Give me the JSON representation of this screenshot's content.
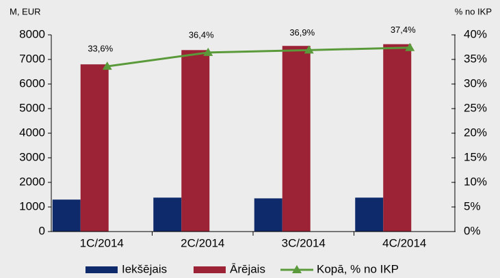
{
  "chart_data": {
    "type": "bar",
    "y_label": "M, EUR",
    "y2_label": "% no IKP",
    "categories": [
      "1C/2014",
      "2C/2014",
      "3C/2014",
      "4C/2014"
    ],
    "series": [
      {
        "name": "Iekšējais",
        "color": "#0f2a6b",
        "values": [
          1300,
          1380,
          1350,
          1380
        ]
      },
      {
        "name": "Ārējais",
        "color": "#9b2335",
        "values": [
          6800,
          7380,
          7550,
          7620
        ]
      },
      {
        "name": "Kopā, % no IKP",
        "color": "#5a9a3a",
        "type": "line",
        "axis": "y2",
        "values": [
          33.6,
          36.4,
          36.9,
          37.4
        ],
        "value_labels": [
          "33,6%",
          "36,4%",
          "36,9%",
          "37,4%"
        ]
      }
    ],
    "ylim": [
      0,
      8000
    ],
    "yticks": [
      0,
      1000,
      2000,
      3000,
      4000,
      5000,
      6000,
      7000,
      8000
    ],
    "y2lim": [
      0,
      40
    ],
    "y2ticks": [
      {
        "value": 0,
        "label": "0%"
      },
      {
        "value": 5,
        "label": "5%"
      },
      {
        "value": 10,
        "label": "10%"
      },
      {
        "value": 15,
        "label": "15%"
      },
      {
        "value": 20,
        "label": "20%"
      },
      {
        "value": 25,
        "label": "25%"
      },
      {
        "value": 30,
        "label": "30%"
      },
      {
        "value": 35,
        "label": "35%"
      },
      {
        "value": 40,
        "label": "40%"
      }
    ],
    "legend": "bottom"
  }
}
